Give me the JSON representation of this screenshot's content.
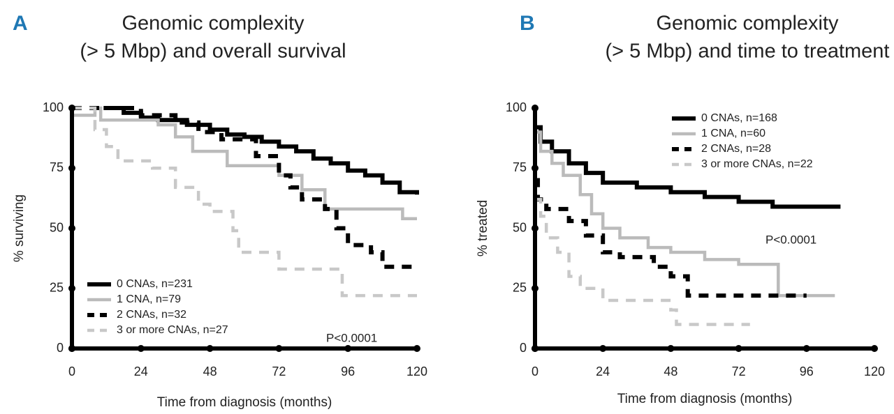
{
  "chart_data": [
    {
      "type": "line",
      "panel": "A",
      "step": true,
      "title": [
        "Genomic complexity",
        "(> 5 Mbp) and overall survival"
      ],
      "x_label": "Time from diagnosis (months)",
      "y_label": "% surviving",
      "xlim": [
        0,
        120
      ],
      "xticks": [
        0,
        24,
        48,
        72,
        96,
        120
      ],
      "ylim": [
        0,
        100
      ],
      "yticks": [
        0,
        25,
        50,
        75,
        100
      ],
      "legend": "lower left",
      "annotation": "P<0.0001",
      "series": [
        {
          "name": "0 CNAs, n=231",
          "color": "#000000",
          "linestyle": "solid",
          "x": [
            11,
            18,
            24,
            30,
            40,
            48,
            54,
            60,
            66,
            72,
            78,
            84,
            90,
            96,
            102,
            108,
            114,
            120
          ],
          "values": [
            100,
            98,
            96,
            95,
            93,
            91,
            89,
            88,
            86,
            84,
            82,
            79,
            77,
            74,
            72,
            69,
            65,
            64
          ]
        },
        {
          "name": "1 CNA, n=79",
          "color": "#bbbbbb",
          "linestyle": "solid",
          "x": [
            0,
            8,
            10,
            30,
            36,
            42,
            54,
            72,
            80,
            88,
            104,
            115,
            120
          ],
          "values": [
            97,
            100,
            95,
            93,
            88,
            82,
            76,
            72,
            66,
            58,
            58,
            54,
            54
          ]
        },
        {
          "name": "2 CNAs, n=32",
          "color": "#000000",
          "linestyle": "dashed",
          "x": [
            0,
            24,
            36,
            44,
            52,
            64,
            72,
            76,
            80,
            88,
            92,
            96,
            104,
            108,
            120
          ],
          "values": [
            100,
            97,
            94,
            90,
            87,
            80,
            72,
            67,
            62,
            58,
            50,
            43,
            40,
            34,
            34
          ]
        },
        {
          "name": "3 or more CNAs, n=27",
          "color": "#c8c8c8",
          "linestyle": "dashed",
          "x": [
            0,
            8,
            12,
            16,
            28,
            36,
            44,
            48,
            56,
            58,
            72,
            90,
            94,
            120
          ],
          "values": [
            100,
            91,
            84,
            78,
            75,
            67,
            60,
            57,
            49,
            40,
            33,
            33,
            22,
            22
          ]
        }
      ]
    },
    {
      "type": "line",
      "panel": "B",
      "step": true,
      "title": [
        "Genomic complexity",
        "(> 5 Mbp) and time to treatment"
      ],
      "x_label": "Time from diagnosis (months)",
      "y_label": "% treated",
      "xlim": [
        0,
        120
      ],
      "xticks": [
        0,
        24,
        48,
        72,
        96,
        120
      ],
      "ylim": [
        0,
        100
      ],
      "yticks": [
        0,
        25,
        50,
        75,
        100
      ],
      "legend": "upper right",
      "annotation": "P<0.0001",
      "series": [
        {
          "name": "0 CNAs, n=168",
          "color": "#000000",
          "linestyle": "solid",
          "x": [
            0,
            2,
            6,
            12,
            18,
            24,
            36,
            48,
            60,
            72,
            84,
            108
          ],
          "values": [
            92,
            86,
            82,
            77,
            73,
            69,
            67,
            65,
            63,
            61,
            59,
            59
          ]
        },
        {
          "name": "1 CNA, n=60",
          "color": "#bbbbbb",
          "linestyle": "solid",
          "x": [
            0,
            2,
            6,
            10,
            16,
            20,
            24,
            30,
            40,
            48,
            60,
            72,
            84,
            86,
            106
          ],
          "values": [
            90,
            82,
            77,
            72,
            64,
            56,
            50,
            46,
            42,
            40,
            37,
            35,
            35,
            22,
            22
          ]
        },
        {
          "name": "2 CNAs, n=28",
          "color": "#000000",
          "linestyle": "dashed",
          "x": [
            0,
            1,
            4,
            12,
            18,
            24,
            30,
            42,
            48,
            54,
            96
          ],
          "values": [
            70,
            62,
            58,
            53,
            47,
            40,
            38,
            34,
            30,
            22,
            22
          ]
        },
        {
          "name": "3 or more CNAs, n=22",
          "color": "#c8c8c8",
          "linestyle": "dashed",
          "x": [
            0,
            2,
            4,
            8,
            12,
            16,
            24,
            48,
            50,
            76
          ],
          "values": [
            62,
            55,
            46,
            40,
            30,
            25,
            20,
            16,
            10,
            10
          ]
        }
      ]
    }
  ]
}
